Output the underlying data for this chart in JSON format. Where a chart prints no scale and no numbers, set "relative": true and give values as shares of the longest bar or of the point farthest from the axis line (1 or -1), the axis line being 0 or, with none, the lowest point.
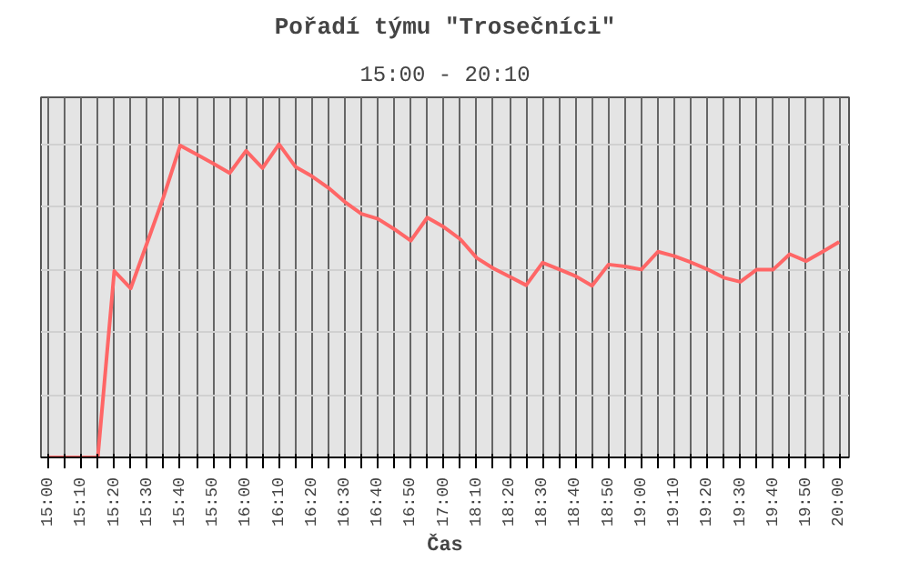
{
  "chart_data": {
    "type": "line",
    "title": "Pořadí týmu \"Trosečníci\"",
    "subtitle": "15:00 - 20:10",
    "xlabel": "Čas",
    "relative": true,
    "tick_labels": "x",
    "grid": true,
    "marker": "none",
    "line_style": "solid",
    "categories": [
      "15:00",
      null,
      "15:10",
      null,
      "15:20",
      null,
      "15:30",
      null,
      "15:40",
      null,
      "15:50",
      null,
      "16:00",
      null,
      "16:10",
      null,
      "16:20",
      null,
      "16:30",
      null,
      "16:40",
      null,
      "16:50",
      null,
      "17:00",
      null,
      "18:10",
      null,
      "18:20",
      null,
      "18:30",
      null,
      "18:40",
      null,
      "18:50",
      null,
      "19:00",
      null,
      "19:10",
      null,
      "19:20",
      null,
      "19:30",
      null,
      "19:40",
      null,
      "19:50",
      null,
      "20:00"
    ],
    "series": [
      {
        "color": "#ff6666",
        "values": [
          0,
          0,
          0,
          0,
          0.595,
          0.54,
          0.686,
          0.833,
          0.996,
          0.968,
          0.939,
          0.908,
          0.979,
          0.924,
          1,
          0.928,
          0.898,
          0.861,
          0.816,
          0.778,
          0.762,
          0.729,
          0.692,
          0.766,
          0.736,
          0.697,
          0.637,
          0.604,
          0.577,
          0.55,
          0.622,
          0.601,
          0.579,
          0.548,
          0.616,
          0.61,
          0.6,
          0.657,
          0.643,
          0.623,
          0.601,
          0.574,
          0.561,
          0.6,
          0.6,
          0.649,
          0.627,
          0.657,
          0.688
        ]
      }
    ]
  }
}
